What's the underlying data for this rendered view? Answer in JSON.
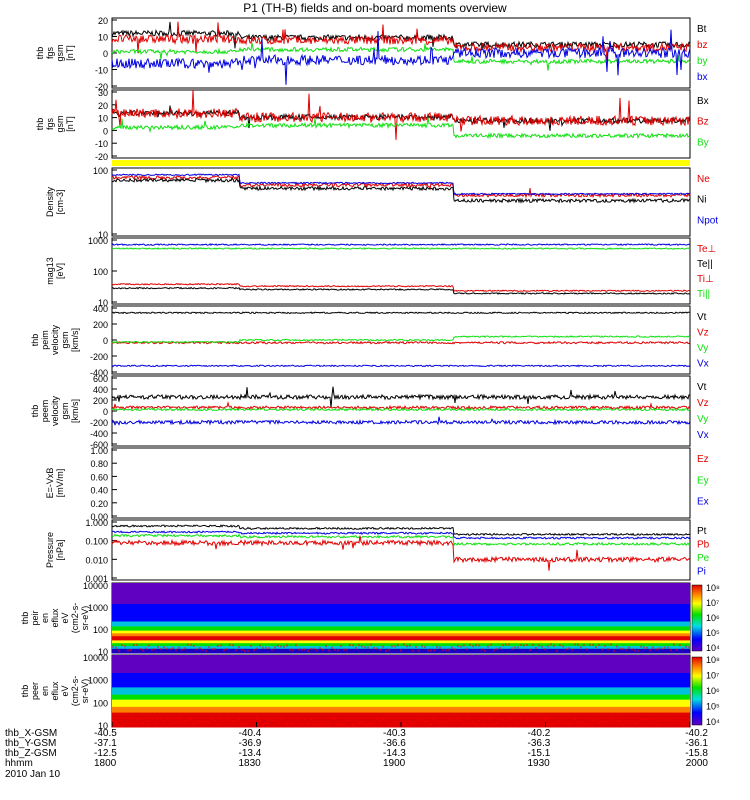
{
  "title": "P1 (TH-B) fields and on-board moments overview",
  "date_label": "2010 Jan 10",
  "colors": {
    "black": "#000000",
    "red": "#e00000",
    "green": "#10e010",
    "blue": "#0000e0",
    "yellow": "#ffff00"
  },
  "chart_data": [
    {
      "type": "line",
      "id": "fgs",
      "ylabel": [
        "thb",
        "fgs",
        "gsm",
        "[nT]"
      ],
      "ticks": [
        "20",
        "10",
        "0",
        "-10",
        "-20"
      ],
      "ylim": [
        -20,
        20
      ],
      "legend": [
        {
          "name": "Bt",
          "color": "black"
        },
        {
          "name": "bz",
          "color": "red"
        },
        {
          "name": "by",
          "color": "green"
        },
        {
          "name": "bx",
          "color": "blue"
        }
      ],
      "series": [
        {
          "name": "Bt",
          "level": 12,
          "late": 6,
          "noise": 3
        },
        {
          "name": "bz",
          "level": 8,
          "late": 3,
          "noise": 4
        },
        {
          "name": "by",
          "level": 1,
          "late": -5,
          "noise": 2
        },
        {
          "name": "bx",
          "level": -6,
          "late": 1,
          "noise": 4
        }
      ]
    },
    {
      "type": "line",
      "id": "fgh",
      "ylabel": [
        "thb",
        "fgs",
        "gsm",
        "[nT]"
      ],
      "ticks": [
        "30",
        "20",
        "10",
        "0",
        "-10",
        "-20"
      ],
      "ylim": [
        -25,
        30
      ],
      "legend": [
        {
          "name": "Bx",
          "color": "black"
        },
        {
          "name": "Bz",
          "color": "red"
        },
        {
          "name": "By",
          "color": "green"
        }
      ],
      "series": [
        {
          "name": "Bx",
          "level": 11,
          "late": 7,
          "noise": 3
        },
        {
          "name": "Bz",
          "level": 12,
          "late": 7,
          "noise": 4
        },
        {
          "name": "By",
          "level": 0,
          "late": -6,
          "noise": 2
        }
      ]
    },
    {
      "type": "line",
      "id": "density",
      "ylabel": [
        "Density",
        "[cm-3]"
      ],
      "ticks": [
        "100",
        "10"
      ],
      "scale": "log",
      "legend": [
        {
          "name": "Ne",
          "color": "red"
        },
        {
          "name": "Ni",
          "color": "black"
        },
        {
          "name": "Npot",
          "color": "blue"
        }
      ]
    },
    {
      "type": "line",
      "id": "temp",
      "ylabel": [
        "mag13",
        "[eV]"
      ],
      "ticks": [
        "1000",
        "100",
        "10"
      ],
      "scale": "log",
      "legend": [
        {
          "name": "Te⊥",
          "color": "red"
        },
        {
          "name": "Te||",
          "color": "black"
        },
        {
          "name": "Ti⊥",
          "color": "red"
        },
        {
          "name": "Ti||",
          "color": "green"
        }
      ]
    },
    {
      "type": "line",
      "id": "vperp",
      "ylabel": [
        "thb",
        "peim",
        "velocity",
        "gsm",
        "[km/s]"
      ],
      "ticks": [
        "400",
        "200",
        "0",
        "-200",
        "-400"
      ],
      "ylim": [
        -400,
        400
      ],
      "legend": [
        {
          "name": "Vt",
          "color": "black"
        },
        {
          "name": "Vz",
          "color": "red"
        },
        {
          "name": "Vy",
          "color": "green"
        },
        {
          "name": "Vx",
          "color": "blue"
        }
      ]
    },
    {
      "type": "line",
      "id": "vperm",
      "ylabel": [
        "thb",
        "peem",
        "velocity",
        "gsm",
        "[km/s]"
      ],
      "ticks": [
        "600",
        "400",
        "200",
        "0",
        "-200",
        "-400",
        "-600"
      ],
      "ylim": [
        -600,
        600
      ],
      "legend": [
        {
          "name": "Vt",
          "color": "black"
        },
        {
          "name": "Vz",
          "color": "red"
        },
        {
          "name": "Vy",
          "color": "green"
        },
        {
          "name": "Vx",
          "color": "blue"
        }
      ]
    },
    {
      "type": "line",
      "id": "efield",
      "ylabel": [
        "E=-VxB",
        "[mV/m]"
      ],
      "ticks": [
        "1.00",
        "0.80",
        "0.60",
        "0.40",
        "0.20",
        "0.00"
      ],
      "ylim": [
        0,
        1
      ],
      "legend": [
        {
          "name": "Ez",
          "color": "red"
        },
        {
          "name": "Ey",
          "color": "green"
        },
        {
          "name": "Ex",
          "color": "blue"
        }
      ]
    },
    {
      "type": "line",
      "id": "pressure",
      "ylabel": [
        "Pressure",
        "[nPa]"
      ],
      "ticks": [
        "1.000",
        "0.100",
        "0.010",
        "0.001"
      ],
      "scale": "log",
      "legend": [
        {
          "name": "Pt",
          "color": "black"
        },
        {
          "name": "Pb",
          "color": "red"
        },
        {
          "name": "Pe",
          "color": "green"
        },
        {
          "name": "Pi",
          "color": "blue"
        }
      ]
    },
    {
      "type": "heatmap",
      "id": "ions",
      "ylabel": [
        "thb",
        "peir",
        "en",
        "eflux",
        "eV",
        "(cm2-s-",
        "sr-eV)"
      ],
      "ticks": [
        "10000",
        "1000",
        "100",
        "10"
      ],
      "colorbar": [
        "10⁸",
        "10⁷",
        "10⁶",
        "10⁵",
        "10⁴"
      ]
    },
    {
      "type": "heatmap",
      "id": "electrons",
      "ylabel": [
        "thb",
        "peer",
        "en",
        "eflux",
        "eV",
        "(cm2-s-",
        "sr-eV)"
      ],
      "ticks": [
        "10000",
        "1000",
        "100",
        "10"
      ],
      "colorbar": [
        "10⁸",
        "10⁷",
        "10⁶",
        "10⁵",
        "10⁴"
      ]
    }
  ],
  "x_axis": {
    "row_labels": [
      "thb_X-GSM",
      "thb_Y-GSM",
      "thb_Z-GSM",
      "hhmm"
    ],
    "columns": [
      [
        "-40.5",
        "-37.1",
        "-12.5",
        "1800"
      ],
      [
        "-40.4",
        "-36.9",
        "-13.4",
        "1830"
      ],
      [
        "-40.3",
        "-36.6",
        "-14.3",
        "1900"
      ],
      [
        "-40.2",
        "-36.3",
        "-15.1",
        "1930"
      ],
      [
        "-40.2",
        "-36.1",
        "-15.8",
        "2000"
      ]
    ]
  }
}
